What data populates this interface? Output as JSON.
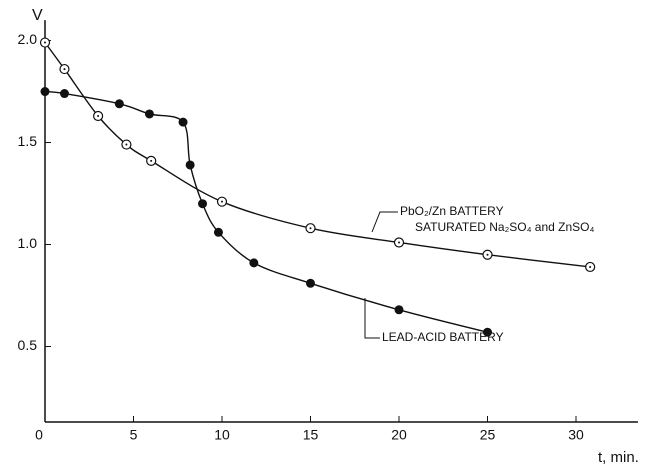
{
  "chart_data": {
    "type": "line",
    "y_label": "V",
    "x_label": "t, min.",
    "xlim": [
      0,
      33.5
    ],
    "ylim": [
      0.13,
      2.1
    ],
    "xticks": [
      0,
      5,
      10,
      15,
      20,
      25,
      30
    ],
    "yticks": [
      {
        "value": 0.5,
        "label": "0.5"
      },
      {
        "value": 1.0,
        "label": "1.0"
      },
      {
        "value": 1.5,
        "label": "1.5"
      },
      {
        "value": 2.0,
        "label": "2.0"
      }
    ],
    "annotations": [
      "PbO₂/Zn BATTERY",
      "SATURATED Na₂SO₄ and ZnSO₄",
      "LEAD-ACID BATTERY"
    ],
    "series": [
      {
        "marker": "open",
        "color": "#111",
        "x": [
          0,
          1.1,
          3.0,
          4.6,
          6.0,
          10,
          15,
          20,
          25,
          30.8
        ],
        "values": [
          1.99,
          1.86,
          1.63,
          1.49,
          1.41,
          1.21,
          1.08,
          1.01,
          0.95,
          0.89
        ]
      },
      {
        "marker": "filled",
        "color": "#111",
        "x": [
          0,
          1.1,
          4.2,
          5.9,
          7.8,
          8.2,
          8.9,
          9.8,
          11.8,
          15,
          20,
          25
        ],
        "values": [
          1.75,
          1.74,
          1.69,
          1.64,
          1.6,
          1.39,
          1.2,
          1.06,
          0.91,
          0.81,
          0.68,
          0.57
        ]
      }
    ]
  }
}
